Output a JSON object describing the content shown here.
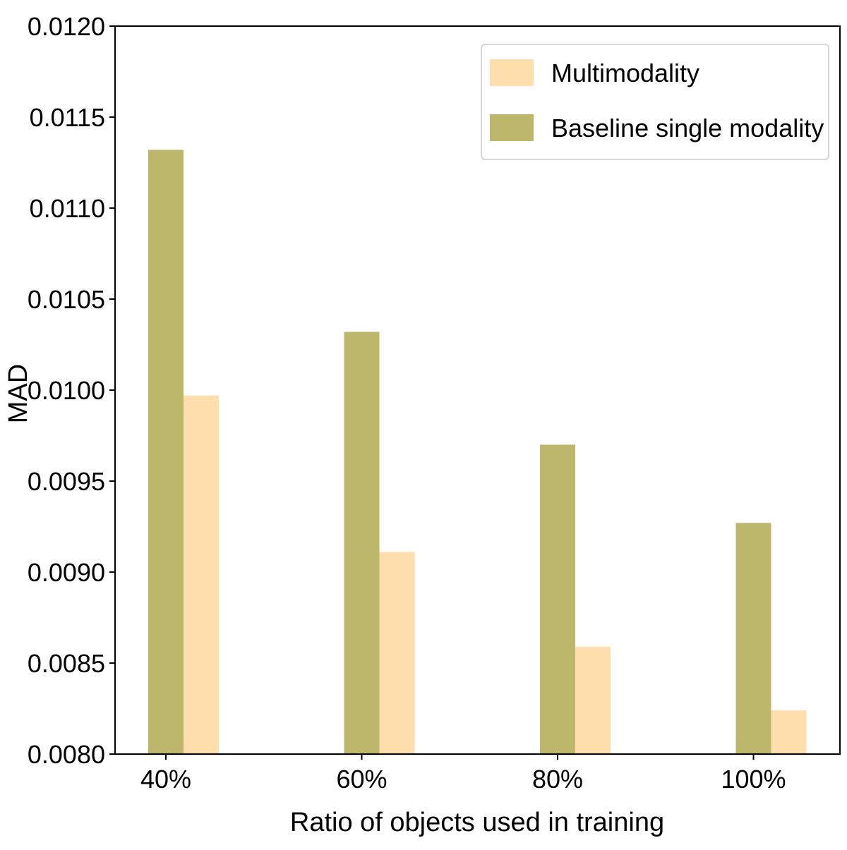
{
  "chart_data": {
    "type": "bar",
    "categories": [
      "40%",
      "60%",
      "80%",
      "100%"
    ],
    "series": [
      {
        "name": "Baseline single modality",
        "color": "#bdb76b",
        "values": [
          0.01132,
          0.01032,
          0.0097,
          0.00927
        ]
      },
      {
        "name": "Multimodality",
        "color": "#ffdead",
        "values": [
          0.00997,
          0.00911,
          0.00859,
          0.00824
        ]
      }
    ],
    "legend_order": [
      "Multimodality",
      "Baseline single modality"
    ],
    "legend_position": "top-right",
    "xlabel": "Ratio of objects used in training",
    "ylabel": "MAD",
    "ylim": [
      0.008,
      0.012
    ],
    "yticks": [
      "0.0080",
      "0.0085",
      "0.0090",
      "0.0095",
      "0.0100",
      "0.0105",
      "0.0110",
      "0.0115",
      "0.0120"
    ],
    "grid": false
  }
}
